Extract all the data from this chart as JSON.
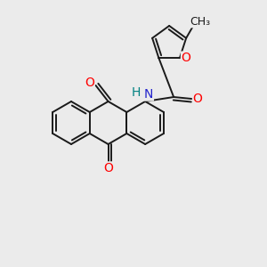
{
  "bg": "#ebebeb",
  "bc": "#1a1a1a",
  "bw": 1.4,
  "colors": {
    "O": "#ff0000",
    "N": "#2222cc",
    "H": "#008080",
    "C": "#1a1a1a",
    "furanO": "#ff0000"
  },
  "fs": 10,
  "fs_methyl": 9
}
